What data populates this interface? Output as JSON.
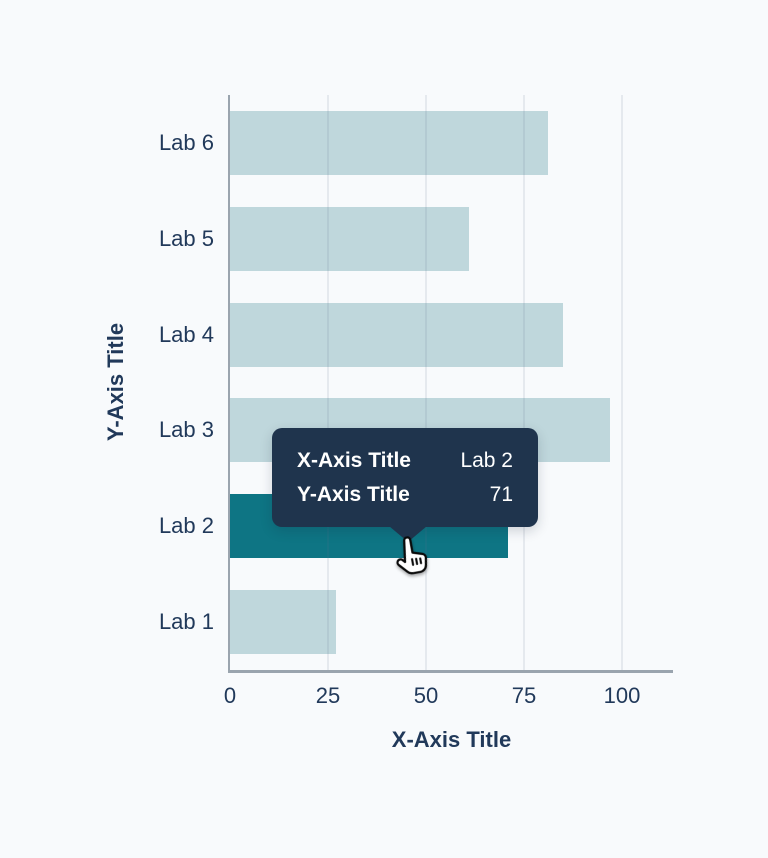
{
  "colors": {
    "background": "#f8fafc",
    "bar": "#bfd7dc",
    "bar_highlight": "#0e7584",
    "text": "#21395a",
    "tooltip_bg": "#1f344d",
    "tooltip_text": "#ffffff",
    "axis_line": "#9aa4ae"
  },
  "chart_data": {
    "type": "bar",
    "orientation": "horizontal",
    "title": "",
    "xlabel": "X-Axis Title",
    "ylabel": "Y-Axis Title",
    "categories": [
      "Lab 1",
      "Lab 2",
      "Lab 3",
      "Lab 4",
      "Lab 5",
      "Lab 6"
    ],
    "values": [
      27,
      71,
      97,
      85,
      61,
      81
    ],
    "highlighted_category": "Lab 2",
    "x_ticks": [
      0,
      25,
      50,
      75,
      100
    ],
    "xlim": [
      0,
      113
    ],
    "grid": true,
    "legend": false
  },
  "tooltip": {
    "rows": [
      {
        "label": "X-Axis Title",
        "value": "Lab 2"
      },
      {
        "label": "Y-Axis Title",
        "value": "71"
      }
    ]
  },
  "cursor": "hand-pointer-cursor"
}
